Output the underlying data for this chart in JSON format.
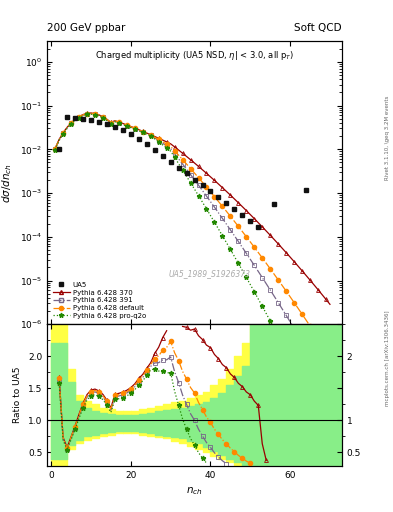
{
  "title_left": "200 GeV ppbar",
  "title_right": "Soft QCD",
  "plot_title": "Charged multiplicity (UA5 NSD, |\\eta| < 3.0, all p_{T})",
  "ylabel_main": "d\\sigma/dn_{ch}",
  "ylabel_ratio": "Ratio to UA5",
  "xlabel": "n_{ch}",
  "right_label_top": "Rivet 3.1.10, \\geq 3.2M events",
  "right_label_bottom": "mcplots.cern.ch [arXiv:1306.3436]",
  "watermark": "UA5_1989_S1926373",
  "ylim_main": [
    1e-06,
    3
  ],
  "ylim_ratio": [
    0.29,
    2.5
  ],
  "xlim": [
    -1,
    73
  ],
  "color_ua5": "#111111",
  "color_370": "#990000",
  "color_391": "#776688",
  "color_def": "#ff8800",
  "color_q2o": "#228800",
  "band_yellow": "#ffff44",
  "band_green": "#88ee88",
  "fig_bgcolor": "#ffffff"
}
